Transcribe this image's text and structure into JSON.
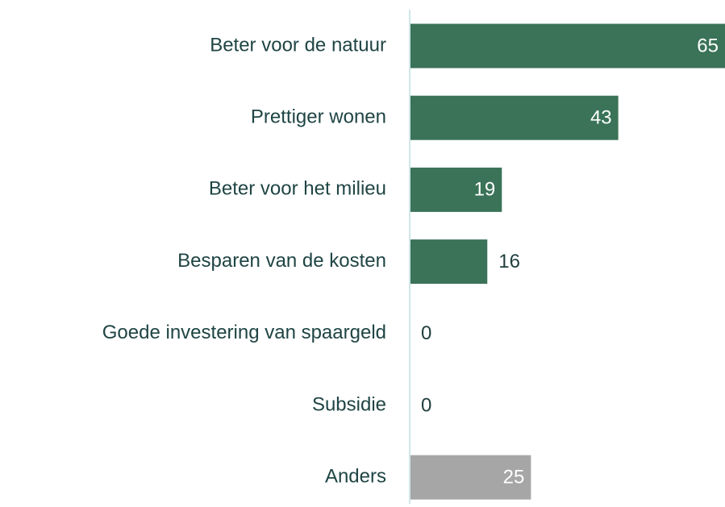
{
  "chart_data": {
    "type": "barh",
    "categories": [
      "Beter voor de natuur",
      "Prettiger wonen",
      "Beter voor het milieu",
      "Besparen van de kosten",
      "Goede investering van spaargeld",
      "Subsidie",
      "Anders"
    ],
    "values": [
      65,
      43,
      19,
      16,
      0,
      0,
      25
    ],
    "colors": [
      "#3a7357",
      "#3a7357",
      "#3a7357",
      "#3a7357",
      "#3a7357",
      "#3a7357",
      "#a6a6a6"
    ],
    "xlim": [
      0,
      65
    ]
  }
}
